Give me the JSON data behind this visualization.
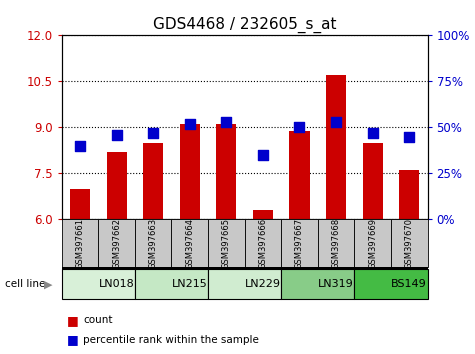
{
  "title": "GDS4468 / 232605_s_at",
  "samples": [
    "GSM397661",
    "GSM397662",
    "GSM397663",
    "GSM397664",
    "GSM397665",
    "GSM397666",
    "GSM397667",
    "GSM397668",
    "GSM397669",
    "GSM397670"
  ],
  "count_values": [
    7.0,
    8.2,
    8.5,
    9.1,
    9.1,
    6.3,
    8.9,
    10.7,
    8.5,
    7.6
  ],
  "percentile_values": [
    40,
    46,
    47,
    52,
    53,
    35,
    50,
    53,
    47,
    45
  ],
  "cell_lines": [
    {
      "name": "LN018",
      "start": 0,
      "end": 2,
      "color": "#d8f0d8"
    },
    {
      "name": "LN215",
      "start": 2,
      "end": 4,
      "color": "#c5e8c5"
    },
    {
      "name": "LN229",
      "start": 4,
      "end": 6,
      "color": "#d0ecd0"
    },
    {
      "name": "LN319",
      "start": 6,
      "end": 8,
      "color": "#88cc88"
    },
    {
      "name": "BS149",
      "start": 8,
      "end": 10,
      "color": "#44bb44"
    }
  ],
  "bar_color": "#cc0000",
  "dot_color": "#0000cc",
  "left_ylim": [
    6,
    12
  ],
  "left_yticks": [
    6,
    7.5,
    9,
    10.5,
    12
  ],
  "right_ylim": [
    0,
    100
  ],
  "right_yticks": [
    0,
    25,
    50,
    75,
    100
  ],
  "right_yticklabels": [
    "0%",
    "25%",
    "50%",
    "75%",
    "100%"
  ],
  "bar_width": 0.55,
  "dot_size": 50,
  "title_fontsize": 11,
  "tick_label_fontsize": 8.5,
  "axis_label_color_left": "#cc0000",
  "axis_label_color_right": "#0000cc",
  "grid_color": "black",
  "bg_color": "#ffffff",
  "sample_box_color": "#c8c8c8",
  "cell_line_label": "cell line",
  "legend_label_count": "count",
  "legend_label_pct": "percentile rank within the sample"
}
